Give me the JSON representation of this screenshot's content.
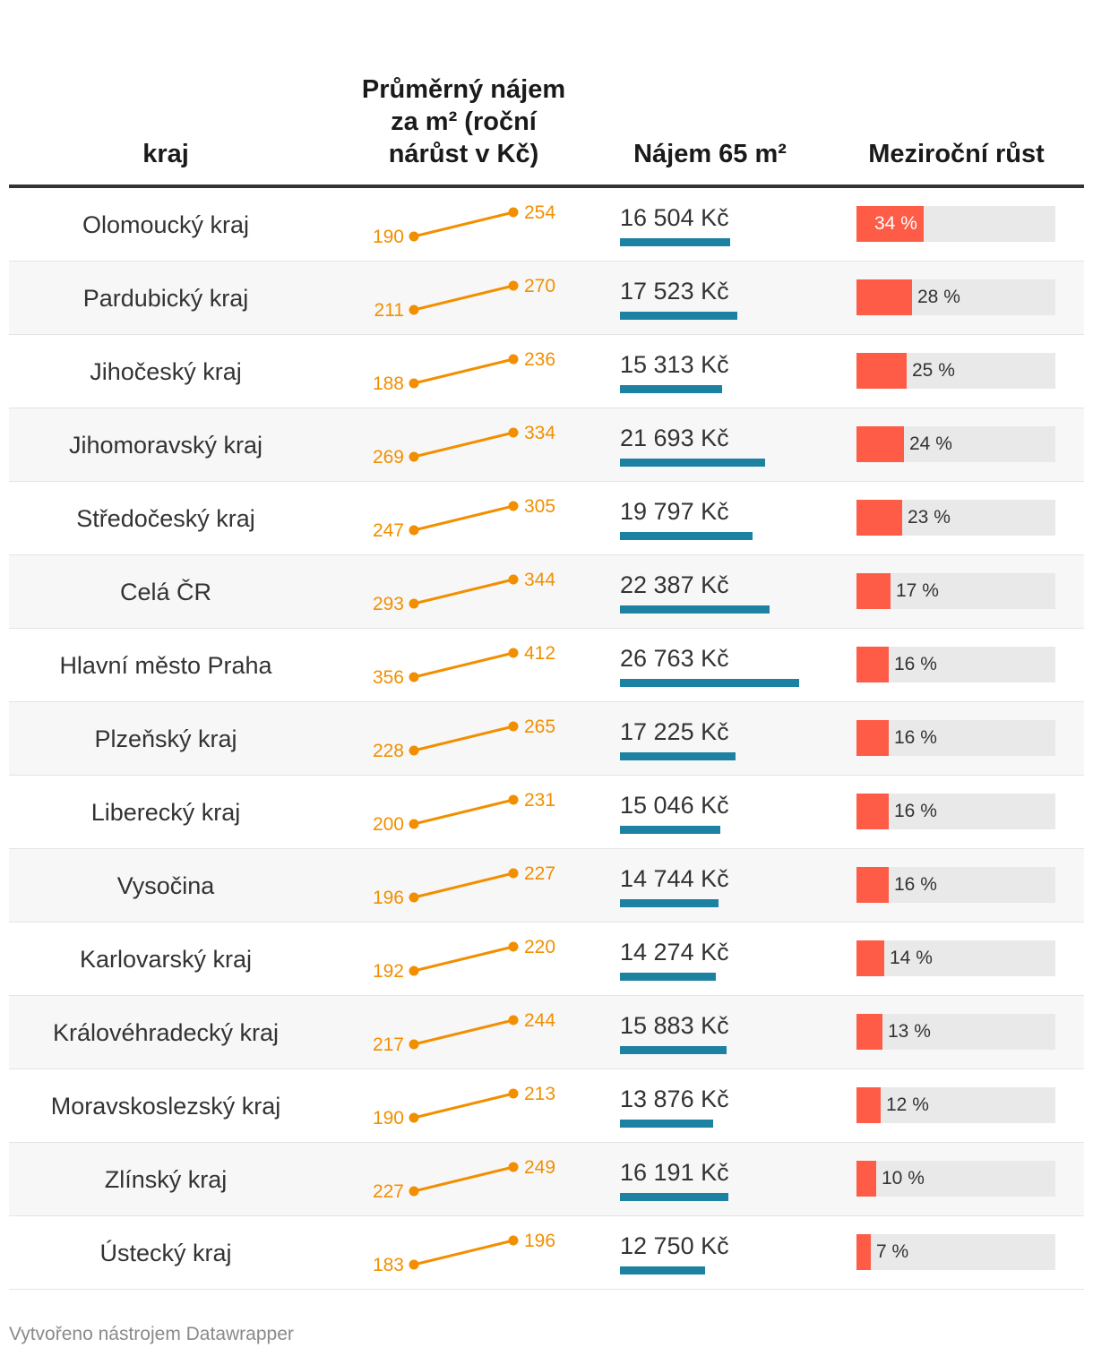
{
  "headers": {
    "kraj": "kraj",
    "prumer": "Průměrný nájem za m² (roční nárůst v Kč)",
    "najem": "Nájem 65 m²",
    "rust": "Meziroční růst"
  },
  "footer": "Vytvořeno nástrojem Datawrapper",
  "colors": {
    "slope": "#f28f00",
    "rent_bar": "#1d81a2",
    "growth_bar": "#ff5c48",
    "growth_bg": "#e9e9e9"
  },
  "chart_data": {
    "type": "table",
    "columns": [
      "kraj",
      "Průměrný nájem za m² (roční nárůst v Kč)",
      "Nájem 65 m²",
      "Meziroční růst"
    ],
    "rows": [
      {
        "kraj": "Olomoucký kraj",
        "from": 190,
        "to": 254,
        "from_label": "190",
        "to_label": "254",
        "rent": 16504,
        "rent_label": "16 504 Kč",
        "growth": 34,
        "growth_label": "34 %"
      },
      {
        "kraj": "Pardubický kraj",
        "from": 211,
        "to": 270,
        "from_label": "211",
        "to_label": "270",
        "rent": 17523,
        "rent_label": "17 523 Kč",
        "growth": 28,
        "growth_label": "28 %"
      },
      {
        "kraj": "Jihočeský kraj",
        "from": 188,
        "to": 236,
        "from_label": "188",
        "to_label": "236",
        "rent": 15313,
        "rent_label": "15 313 Kč",
        "growth": 25,
        "growth_label": "25 %"
      },
      {
        "kraj": "Jihomoravský kraj",
        "from": 269,
        "to": 334,
        "from_label": "269",
        "to_label": "334",
        "rent": 21693,
        "rent_label": "21 693 Kč",
        "growth": 24,
        "growth_label": "24 %"
      },
      {
        "kraj": "Středočeský kraj",
        "from": 247,
        "to": 305,
        "from_label": "247",
        "to_label": "305",
        "rent": 19797,
        "rent_label": "19 797 Kč",
        "growth": 23,
        "growth_label": "23 %"
      },
      {
        "kraj": "Celá ČR",
        "from": 293,
        "to": 344,
        "from_label": "293",
        "to_label": "344",
        "rent": 22387,
        "rent_label": "22 387 Kč",
        "growth": 17,
        "growth_label": "17 %"
      },
      {
        "kraj": "Hlavní město Praha",
        "from": 356,
        "to": 412,
        "from_label": "356",
        "to_label": "412",
        "rent": 26763,
        "rent_label": "26 763 Kč",
        "growth": 16,
        "growth_label": "16 %"
      },
      {
        "kraj": "Plzeňský kraj",
        "from": 228,
        "to": 265,
        "from_label": "228",
        "to_label": "265",
        "rent": 17225,
        "rent_label": "17 225 Kč",
        "growth": 16,
        "growth_label": "16 %"
      },
      {
        "kraj": "Liberecký kraj",
        "from": 200,
        "to": 231,
        "from_label": "200",
        "to_label": "231",
        "rent": 15046,
        "rent_label": "15 046 Kč",
        "growth": 16,
        "growth_label": "16 %"
      },
      {
        "kraj": "Vysočina",
        "from": 196,
        "to": 227,
        "from_label": "196",
        "to_label": "227",
        "rent": 14744,
        "rent_label": "14 744 Kč",
        "growth": 16,
        "growth_label": "16 %"
      },
      {
        "kraj": "Karlovarský kraj",
        "from": 192,
        "to": 220,
        "from_label": "192",
        "to_label": "220",
        "rent": 14274,
        "rent_label": "14 274 Kč",
        "growth": 14,
        "growth_label": "14 %"
      },
      {
        "kraj": "Královéhradecký kraj",
        "from": 217,
        "to": 244,
        "from_label": "217",
        "to_label": "244",
        "rent": 15883,
        "rent_label": "15 883 Kč",
        "growth": 13,
        "growth_label": "13 %"
      },
      {
        "kraj": "Moravskoslezský kraj",
        "from": 190,
        "to": 213,
        "from_label": "190",
        "to_label": "213",
        "rent": 13876,
        "rent_label": "13 876 Kč",
        "growth": 12,
        "growth_label": "12 %"
      },
      {
        "kraj": "Zlínský kraj",
        "from": 227,
        "to": 249,
        "from_label": "227",
        "to_label": "249",
        "rent": 16191,
        "rent_label": "16 191 Kč",
        "growth": 10,
        "growth_label": "10 %"
      },
      {
        "kraj": "Ústecký kraj",
        "from": 183,
        "to": 196,
        "from_label": "183",
        "to_label": "196",
        "rent": 12750,
        "rent_label": "12 750 Kč",
        "growth": 7,
        "growth_label": "7 %"
      }
    ]
  }
}
